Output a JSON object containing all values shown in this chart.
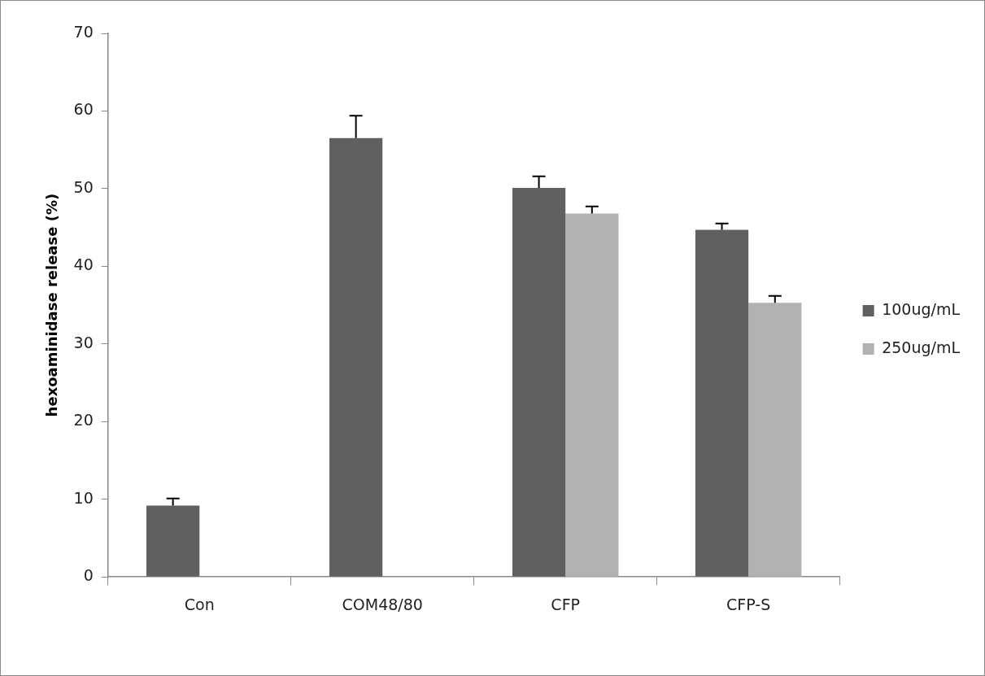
{
  "chart_data": {
    "type": "bar",
    "ylabel": "hexoaminidase release (%)",
    "categories": [
      "Con",
      "COM48/80",
      "CFP",
      "CFP-S"
    ],
    "series": [
      {
        "name": "100ug/mL",
        "color": "#606060",
        "values": [
          9.2,
          56.5,
          50.1,
          44.7
        ],
        "errors": [
          [
            9.2,
            10.1
          ],
          [
            56.5,
            59.4
          ],
          [
            50.1,
            51.6
          ],
          [
            44.7,
            45.5
          ]
        ]
      },
      {
        "name": "250ug/mL",
        "color": "#b2b2b2",
        "values": [
          null,
          null,
          46.8,
          35.3
        ],
        "errors": [
          null,
          null,
          [
            46.8,
            47.7
          ],
          [
            35.3,
            36.2
          ]
        ]
      }
    ],
    "ylim": [
      0,
      70
    ],
    "yticks": [
      0,
      10,
      20,
      30,
      40,
      50,
      60,
      70
    ],
    "grid": false,
    "legend": "right"
  }
}
